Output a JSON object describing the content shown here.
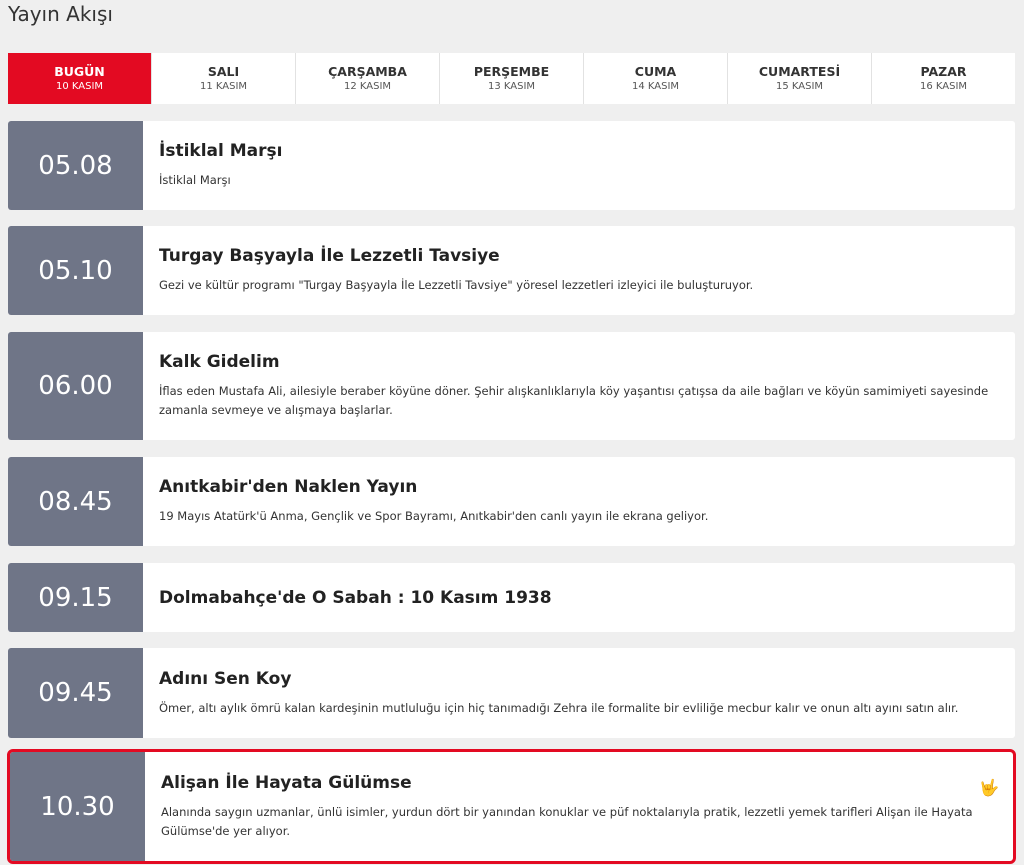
{
  "page_title": "Yayın Akışı",
  "tabs": [
    {
      "day": "BUGÜN",
      "date": "10 KASIM"
    },
    {
      "day": "SALI",
      "date": "11 KASIM"
    },
    {
      "day": "ÇARŞAMBA",
      "date": "12 KASIM"
    },
    {
      "day": "PERŞEMBE",
      "date": "13 KASIM"
    },
    {
      "day": "CUMA",
      "date": "14 KASIM"
    },
    {
      "day": "CUMARTESİ",
      "date": "15 KASIM"
    },
    {
      "day": "PAZAR",
      "date": "16 KASIM"
    }
  ],
  "active_tab": "BUGÜN",
  "programs": [
    {
      "time": "05.08",
      "title": "İstiklal Marşı",
      "desc": "İstiklal Marşı"
    },
    {
      "time": "05.10",
      "title": "Turgay Başyayla İle Lezzetli Tavsiye",
      "desc": "Gezi ve kültür programı \"Turgay Başyayla İle Lezzetli Tavsiye\" yöresel lezzetleri izleyici ile buluşturuyor."
    },
    {
      "time": "06.00",
      "title": "Kalk Gidelim",
      "desc": "İflas eden Mustafa Ali, ailesiyle beraber köyüne döner. Şehir alışkanlıklarıyla köy yaşantısı çatışsa da aile bağları ve köyün samimiyeti sayesinde zamanla sevmeye ve alışmaya başlarlar."
    },
    {
      "time": "08.45",
      "title": "Anıtkabir'den Naklen Yayın",
      "desc": "19 Mayıs Atatürk'ü Anma, Gençlik ve Spor Bayramı, Anıtkabir'den canlı yayın ile ekrana geliyor."
    },
    {
      "time": "09.15",
      "title": "Dolmabahçe'de O Sabah : 10 Kasım 1938",
      "desc": ""
    },
    {
      "time": "09.45",
      "title": "Adını Sen Koy",
      "desc": "Ömer, altı aylık ömrü kalan kardeşinin mutluluğu için hiç tanımadığı Zehra ile formalite bir evliliğe mecbur kalır ve onun altı ayını satın alır."
    },
    {
      "time": "10.30",
      "title": "Alişan İle Hayata Gülümse",
      "desc": "Alanında saygın uzmanlar, ünlü isimler, yurdun dört bir yanından konuklar ve püf noktalarıyla pratik, lezzetli yemek tarifleri Alişan ile Hayata Gülümse'de yer alıyor.",
      "icon": "sign-language-icon",
      "highlighted": true
    }
  ],
  "colors": {
    "accent": "#e30a22",
    "time_bg": "#6f7587"
  }
}
